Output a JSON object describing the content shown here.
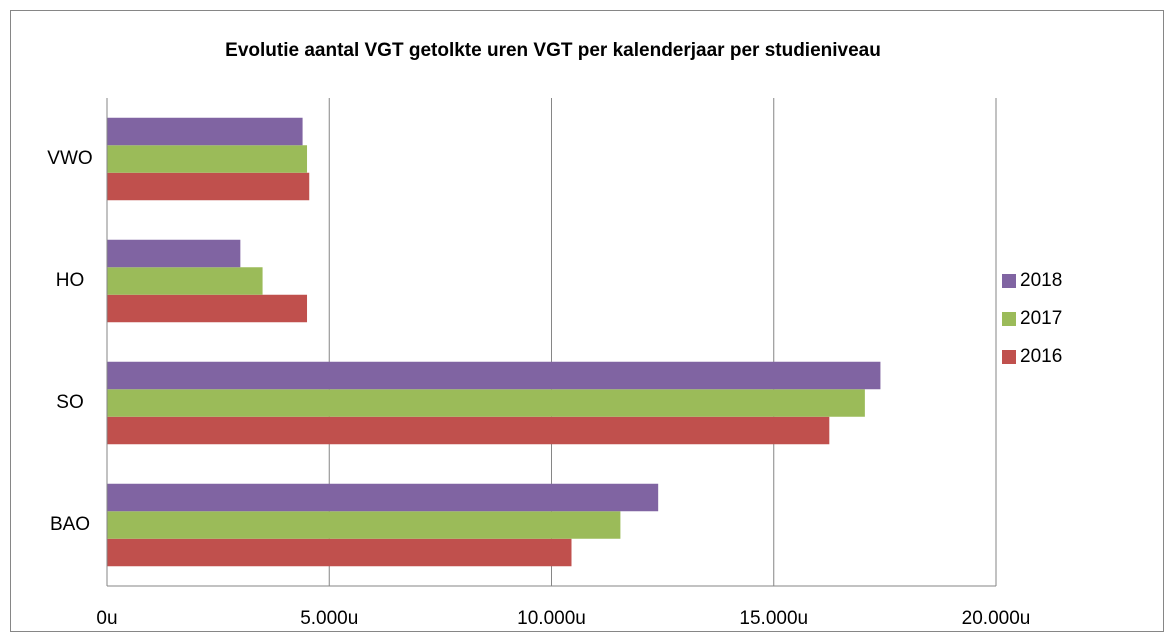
{
  "chart_data": {
    "type": "hbar",
    "title": "Evolutie aantal VGT getolkte uren VGT per kalenderjaar per studieniveau",
    "categories": [
      "BAO",
      "SO",
      "HO",
      "VWO"
    ],
    "series": [
      {
        "name": "2016",
        "color": "#c0504d",
        "values": [
          10450,
          16250,
          4500,
          4550
        ]
      },
      {
        "name": "2017",
        "color": "#9bbb59",
        "values": [
          11550,
          17050,
          3500,
          4500
        ]
      },
      {
        "name": "2018",
        "color": "#8064a2",
        "values": [
          12400,
          17400,
          3000,
          4400
        ]
      }
    ],
    "xlim": [
      0,
      20000
    ],
    "xticks": [
      {
        "value": 0,
        "label": "0u"
      },
      {
        "value": 5000,
        "label": "5.000u"
      },
      {
        "value": 10000,
        "label": "10.000u"
      },
      {
        "value": 15000,
        "label": "15.000u"
      },
      {
        "value": 20000,
        "label": "20.000u"
      }
    ],
    "grid": true,
    "legend": "right"
  }
}
